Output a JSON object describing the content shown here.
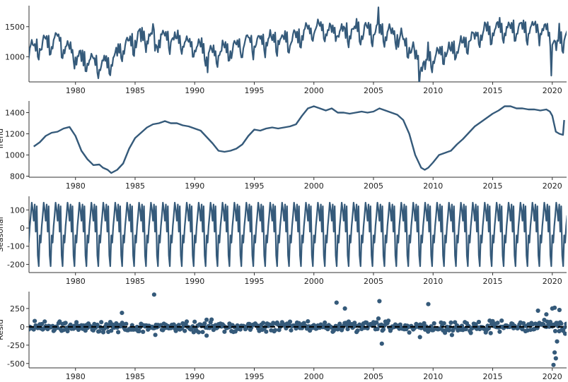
{
  "figure": {
    "background": "#ffffff",
    "line_color": "#355a7a",
    "marker_color": "#355a7a",
    "zero_line_color": "#000000"
  },
  "chart_data": [
    {
      "type": "line",
      "title": "",
      "ylabel": "",
      "xlim": [
        1976.1,
        2021.2
      ],
      "ylim": [
        580,
        1850
      ],
      "xticks": [
        1980,
        1985,
        1990,
        1995,
        2000,
        2005,
        2010,
        2015,
        2020
      ],
      "yticks": [
        1000,
        1500
      ],
      "grid": false,
      "series": [
        {
          "id": "observed",
          "sampling": "monthly",
          "x_start": 1976.0,
          "x_step": 0.0833333,
          "trend_knots_x": [
            1976.0,
            1977.0,
            1977.8,
            1978.5,
            1979.5,
            1980.5,
            1981.5,
            1982.3,
            1983.0,
            1984.0,
            1985.0,
            1986.5,
            1988.0,
            1989.5,
            1990.5,
            1991.5,
            1992.5,
            1993.5,
            1994.5,
            1995.5,
            1996.5,
            1997.5,
            1998.5,
            1999.5,
            2000.2,
            2001.0,
            2002.0,
            2003.0,
            2004.0,
            2005.0,
            2006.0,
            2007.0,
            2008.0,
            2009.0,
            2009.5,
            2010.5,
            2011.5,
            2012.5,
            2013.5,
            2014.5,
            2015.5,
            2016.5,
            2017.5,
            2018.5,
            2019.5,
            2020.0,
            2020.5,
            2021.0
          ],
          "trend_knots_y": [
            1080,
            1170,
            1220,
            1250,
            1100,
            930,
            900,
            840,
            910,
            1150,
            1280,
            1310,
            1290,
            1220,
            1110,
            1030,
            1060,
            1160,
            1250,
            1240,
            1260,
            1260,
            1310,
            1430,
            1460,
            1410,
            1400,
            1390,
            1410,
            1420,
            1400,
            1340,
            1150,
            860,
            900,
            1020,
            1100,
            1200,
            1320,
            1390,
            1450,
            1450,
            1440,
            1440,
            1420,
            1250,
            1190,
            1330
          ],
          "seasonal_pattern": [
            -40,
            -80,
            10,
            70,
            140,
            100,
            40,
            130,
            -20,
            120,
            -150,
            -210
          ],
          "noise_amplitude": 70,
          "dips": [
            [
              1986.7,
              -230
            ],
            [
              1991.1,
              -210
            ],
            [
              1994.0,
              -150
            ],
            [
              2008.8,
              -250
            ],
            [
              2009.3,
              -180
            ],
            [
              2019.9,
              -420
            ],
            [
              2020.3,
              -230
            ]
          ],
          "spikes": [
            [
              1986.5,
              220
            ],
            [
              1990.6,
              60
            ],
            [
              2001.9,
              200
            ],
            [
              2005.4,
              280
            ],
            [
              2009.6,
              230
            ],
            [
              2018.8,
              190
            ],
            [
              2020.6,
              220
            ]
          ]
        }
      ]
    },
    {
      "type": "line",
      "title": "",
      "ylabel": "Trend",
      "xlim": [
        1976.1,
        2021.2
      ],
      "ylim": [
        790,
        1510
      ],
      "xticks": [
        1980,
        1985,
        1990,
        1995,
        2000,
        2005,
        2010,
        2015,
        2020
      ],
      "yticks": [
        800,
        1000,
        1200,
        1400
      ],
      "grid": false,
      "series": [
        {
          "id": "trend",
          "x": [
            1976.5,
            1977.0,
            1977.5,
            1978.0,
            1978.5,
            1979.0,
            1979.5,
            1980.0,
            1980.5,
            1981.0,
            1981.5,
            1982.0,
            1982.3,
            1982.7,
            1983.0,
            1983.5,
            1984.0,
            1984.5,
            1985.0,
            1985.5,
            1986.0,
            1986.5,
            1987.0,
            1987.5,
            1988.0,
            1988.5,
            1989.0,
            1989.5,
            1990.0,
            1990.5,
            1991.0,
            1991.5,
            1992.0,
            1992.5,
            1993.0,
            1993.5,
            1994.0,
            1994.5,
            1995.0,
            1995.5,
            1996.0,
            1996.5,
            1997.0,
            1997.5,
            1998.0,
            1998.5,
            1999.0,
            1999.5,
            2000.0,
            2000.5,
            2001.0,
            2001.5,
            2002.0,
            2002.5,
            2003.0,
            2003.5,
            2004.0,
            2004.5,
            2005.0,
            2005.5,
            2006.0,
            2006.5,
            2007.0,
            2007.5,
            2008.0,
            2008.5,
            2009.0,
            2009.3,
            2009.6,
            2010.0,
            2010.5,
            2011.0,
            2011.5,
            2012.0,
            2012.5,
            2013.0,
            2013.5,
            2014.0,
            2014.5,
            2015.0,
            2015.5,
            2016.0,
            2016.5,
            2017.0,
            2017.5,
            2018.0,
            2018.5,
            2019.0,
            2019.5,
            2019.8,
            2020.0,
            2020.3,
            2020.6,
            2020.9,
            2021.0
          ],
          "y": [
            1080,
            1120,
            1180,
            1210,
            1220,
            1250,
            1265,
            1180,
            1040,
            960,
            905,
            910,
            880,
            860,
            830,
            860,
            920,
            1060,
            1160,
            1210,
            1260,
            1290,
            1300,
            1320,
            1300,
            1300,
            1280,
            1270,
            1250,
            1230,
            1170,
            1110,
            1040,
            1030,
            1040,
            1060,
            1100,
            1180,
            1240,
            1230,
            1250,
            1260,
            1250,
            1260,
            1270,
            1290,
            1370,
            1440,
            1460,
            1440,
            1420,
            1440,
            1400,
            1400,
            1390,
            1400,
            1410,
            1400,
            1410,
            1440,
            1420,
            1400,
            1380,
            1330,
            1200,
            1000,
            880,
            860,
            880,
            930,
            1000,
            1020,
            1040,
            1100,
            1150,
            1210,
            1270,
            1310,
            1350,
            1390,
            1420,
            1460,
            1460,
            1440,
            1440,
            1430,
            1430,
            1420,
            1430,
            1410,
            1370,
            1220,
            1200,
            1190,
            1330
          ]
        }
      ]
    },
    {
      "type": "line",
      "title": "",
      "ylabel": "Seasonal",
      "xlim": [
        1976.1,
        2021.2
      ],
      "ylim": [
        -245,
        175
      ],
      "xticks": [
        1980,
        1985,
        1990,
        1995,
        2000,
        2005,
        2010,
        2015,
        2020
      ],
      "yticks": [
        -200,
        -100,
        0,
        100
      ],
      "grid": false,
      "series": [
        {
          "id": "seasonal",
          "sampling": "monthly repeating",
          "x_start": 1976.0,
          "x_step": 0.0833333,
          "pattern": [
            -40,
            -80,
            10,
            70,
            140,
            100,
            40,
            130,
            -20,
            120,
            -150,
            -210
          ]
        }
      ]
    },
    {
      "type": "scatter",
      "title": "",
      "ylabel": "Resid",
      "xlim": [
        1976.1,
        2021.2
      ],
      "ylim": [
        -560,
        480
      ],
      "xticks": [
        1980,
        1985,
        1990,
        1995,
        2000,
        2005,
        2010,
        2015,
        2020
      ],
      "yticks": [
        -500,
        -250,
        0,
        250
      ],
      "grid": false,
      "reference_line_y": 0,
      "series": [
        {
          "id": "resid",
          "sampling": "monthly",
          "x_start": 1976.0,
          "x_step": 0.0833333,
          "noise_amplitude": 70,
          "outliers": [
            [
              1986.6,
              440
            ],
            [
              1983.9,
              190
            ],
            [
              1986.7,
              -110
            ],
            [
              1991.0,
              -120
            ],
            [
              2001.9,
              330
            ],
            [
              2002.6,
              250
            ],
            [
              2005.5,
              350
            ],
            [
              2005.7,
              -230
            ],
            [
              2009.6,
              310
            ],
            [
              2008.9,
              -140
            ],
            [
              2018.8,
              220
            ],
            [
              2019.5,
              170
            ],
            [
              2020.0,
              250
            ],
            [
              2020.2,
              260
            ],
            [
              2020.6,
              230
            ],
            [
              2020.2,
              -350
            ],
            [
              2020.3,
              -430
            ],
            [
              2020.1,
              -520
            ],
            [
              2020.4,
              -200
            ]
          ]
        }
      ]
    }
  ]
}
